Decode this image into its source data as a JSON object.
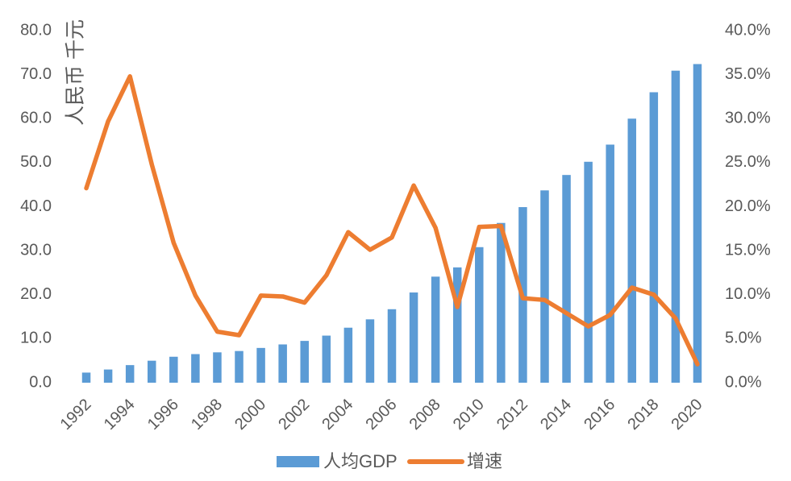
{
  "chart_data": {
    "type": "bar",
    "x": [
      1992,
      1993,
      1994,
      1995,
      1996,
      1997,
      1998,
      1999,
      2000,
      2001,
      2002,
      2003,
      2004,
      2005,
      2006,
      2007,
      2008,
      2009,
      2010,
      2011,
      2012,
      2013,
      2014,
      2015,
      2016,
      2017,
      2018,
      2019,
      2020
    ],
    "series": [
      {
        "name": "人均GDP",
        "type": "bar",
        "axis": "left",
        "color": "#5B9BD5",
        "values": [
          2.3,
          3.0,
          4.0,
          5.0,
          5.9,
          6.5,
          6.9,
          7.2,
          7.9,
          8.7,
          9.5,
          10.7,
          12.5,
          14.4,
          16.7,
          20.5,
          24.1,
          26.2,
          30.8,
          36.3,
          39.9,
          43.7,
          47.2,
          50.2,
          54.1,
          60.0,
          66.0,
          70.9,
          72.4
        ]
      },
      {
        "name": "增速",
        "type": "line",
        "axis": "right",
        "color": "#ED7D31",
        "values": [
          22.1,
          29.7,
          34.8,
          24.8,
          15.9,
          9.9,
          5.8,
          5.4,
          9.9,
          9.8,
          9.1,
          12.2,
          17.1,
          15.1,
          16.5,
          22.4,
          17.6,
          8.6,
          17.7,
          17.8,
          9.6,
          9.4,
          7.9,
          6.4,
          7.7,
          10.8,
          10.0,
          7.3,
          2.1
        ]
      }
    ],
    "xticks": [
      "1992",
      "1994",
      "1996",
      "1998",
      "2000",
      "2002",
      "2004",
      "2006",
      "2008",
      "2010",
      "2012",
      "2014",
      "2016",
      "2018",
      "2020"
    ],
    "ylabel": "人民币 千元",
    "ylim": [
      0,
      80
    ],
    "yticks": [
      "0.0",
      "10.0",
      "20.0",
      "30.0",
      "40.0",
      "50.0",
      "60.0",
      "70.0",
      "80.0"
    ],
    "y2lim": [
      0,
      40
    ],
    "y2ticks": [
      "0.0%",
      "5.0%",
      "10.0%",
      "15.0%",
      "20.0%",
      "25.0%",
      "30.0%",
      "35.0%",
      "40.0%"
    ],
    "grid": false,
    "legend": "bottom",
    "text_color": "#595959"
  }
}
